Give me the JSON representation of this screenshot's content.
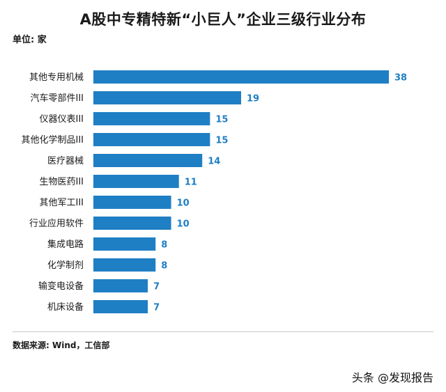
{
  "title": "A股中专精特新“小巨人”企业三级行业分布",
  "unit_label": "单位: 家",
  "source": "数据来源: Wind，工信部",
  "watermark": "头条 @发现报告",
  "colors": {
    "bar": "#1f7fc4",
    "value_label": "#1f7fc4"
  },
  "chart_data": {
    "type": "bar",
    "orientation": "horizontal",
    "title": "A股中专精特新“小巨人”企业三级行业分布",
    "xlabel": "",
    "ylabel": "",
    "unit": "家",
    "categories": [
      "其他专用机械",
      "汽车零部件III",
      "仪器仪表III",
      "其他化学制品III",
      "医疗器械",
      "生物医药III",
      "其他军工III",
      "行业应用软件",
      "集成电路",
      "化学制剂",
      "输变电设备",
      "机床设备"
    ],
    "values": [
      38,
      19,
      15,
      15,
      14,
      11,
      10,
      10,
      8,
      8,
      7,
      7
    ],
    "xlim": [
      0,
      38
    ],
    "grid": false,
    "legend": "none",
    "data_labels": true
  }
}
